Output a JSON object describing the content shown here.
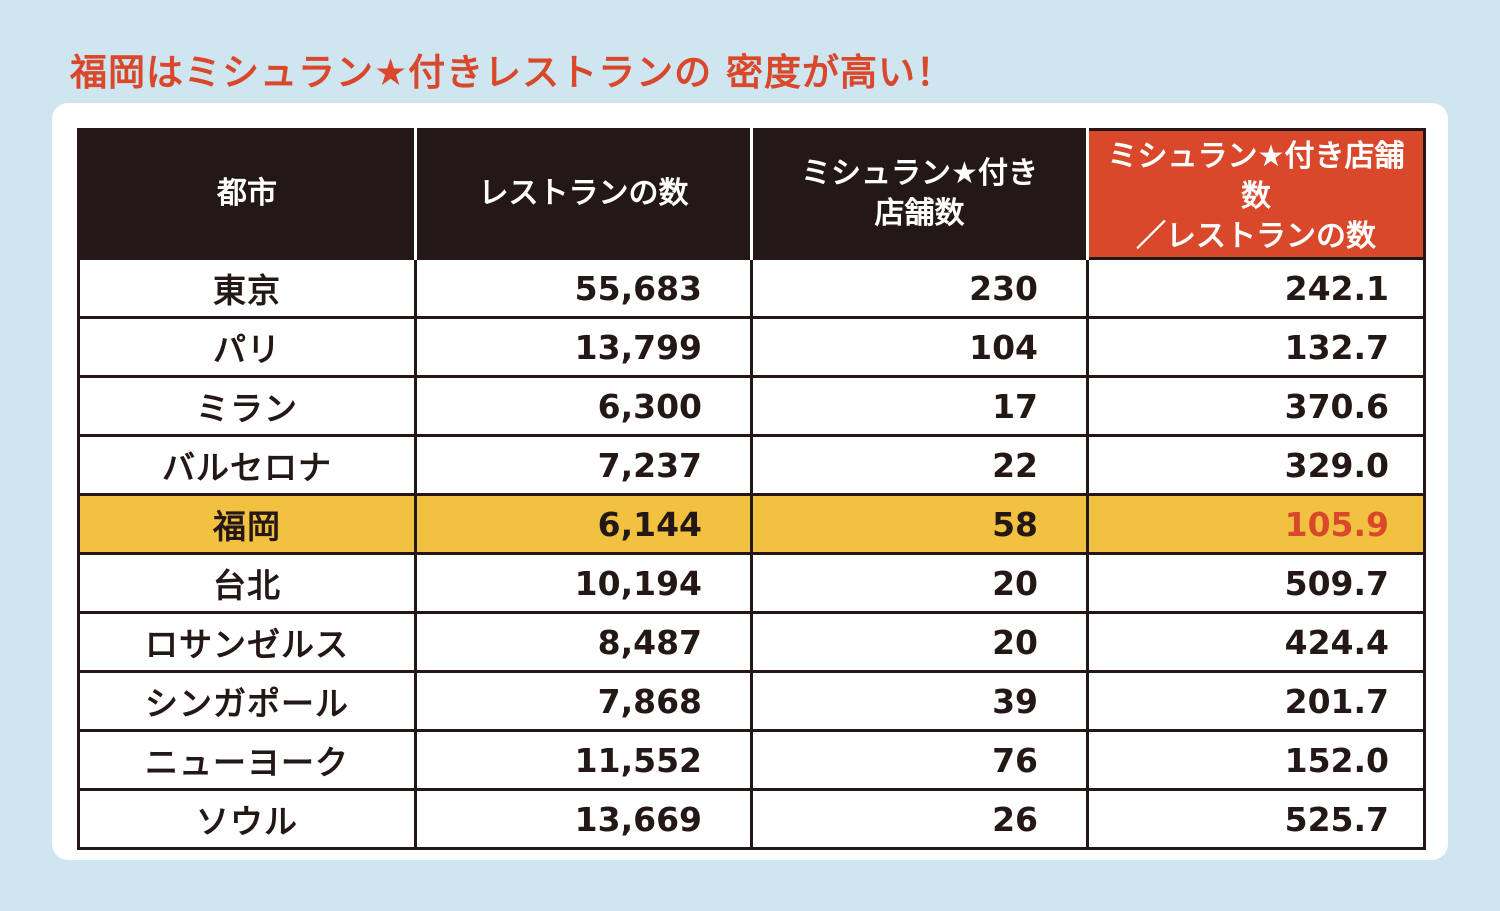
{
  "title": "福岡はミシュラン★付きレストランの 密度が高い！",
  "chart_data": {
    "type": "table",
    "columns": [
      "都市",
      "レストランの数",
      "ミシュラン★付き\n店舗数",
      "ミシュラン★付き店舗数\n／レストランの数"
    ],
    "rows": [
      {
        "city": "東京",
        "restaurants": "55,683",
        "starred": "230",
        "ratio": "242.1"
      },
      {
        "city": "パリ",
        "restaurants": "13,799",
        "starred": "104",
        "ratio": "132.7"
      },
      {
        "city": "ミラン",
        "restaurants": "6,300",
        "starred": "17",
        "ratio": "370.6"
      },
      {
        "city": "バルセロナ",
        "restaurants": "7,237",
        "starred": "22",
        "ratio": "329.0"
      },
      {
        "city": "福岡",
        "restaurants": "6,144",
        "starred": "58",
        "ratio": "105.9"
      },
      {
        "city": "台北",
        "restaurants": "10,194",
        "starred": "20",
        "ratio": "509.7"
      },
      {
        "city": "ロサンゼルス",
        "restaurants": "8,487",
        "starred": "20",
        "ratio": "424.4"
      },
      {
        "city": "シンガポール",
        "restaurants": "7,868",
        "starred": "39",
        "ratio": "201.7"
      },
      {
        "city": "ニューヨーク",
        "restaurants": "11,552",
        "starred": "76",
        "ratio": "152.0"
      },
      {
        "city": "ソウル",
        "restaurants": "13,669",
        "starred": "26",
        "ratio": "525.7"
      }
    ],
    "highlight_row": "福岡",
    "highlight_column": "ミシュラン★付き店舗数\n／レストランの数"
  },
  "colors": {
    "accent": "#d9482a",
    "highlight_row": "#f2c140",
    "header_bg": "#231815",
    "background": "#cfe6f1"
  }
}
